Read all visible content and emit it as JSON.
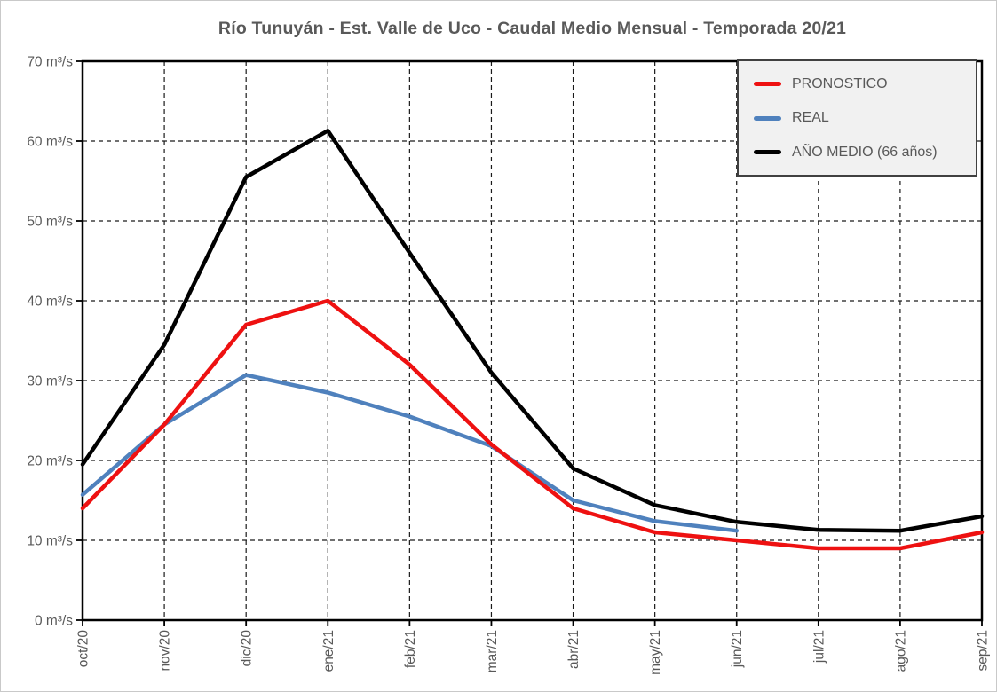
{
  "window": {
    "background": "#ffffff",
    "border_color": "#c9c9c9"
  },
  "chart_data": {
    "type": "line",
    "title": "Río Tunuyán - Est. Valle de Uco - Caudal Medio Mensual - Temporada 20/21",
    "title_color": "#595959",
    "xlabel": "",
    "ylabel": "",
    "unit": "m³/s",
    "categories": [
      "oct/20",
      "nov/20",
      "dic/20",
      "ene/21",
      "feb/21",
      "mar/21",
      "abr/21",
      "may/21",
      "jun/21",
      "jul/21",
      "ago/21",
      "sep/21"
    ],
    "ylim": [
      0,
      70
    ],
    "ytick_step": 10,
    "ytick_labels": [
      "0 m³/s",
      "10 m³/s",
      "20 m³/s",
      "30 m³/s",
      "40 m³/s",
      "50 m³/s",
      "60 m³/s",
      "70 m³/s"
    ],
    "grid": {
      "style": "dashed",
      "color": "#1a1a1a",
      "horizontal": true,
      "vertical": true
    },
    "axis_text_color": "#595959",
    "legend": {
      "position": "top-right-inside",
      "background": "#f1f1f1",
      "border_color": "#404040"
    },
    "series": [
      {
        "name": "PRONOSTICO",
        "color": "#ee1111",
        "values": [
          14,
          24.5,
          37,
          40,
          32,
          22,
          14,
          11,
          10,
          9,
          9,
          11
        ]
      },
      {
        "name": "REAL",
        "color": "#4f81bd",
        "values": [
          15.7,
          24.5,
          30.7,
          28.5,
          25.5,
          21.8,
          15,
          12.4,
          11.2,
          null,
          null,
          null
        ]
      },
      {
        "name": "AÑO MEDIO (66 años)",
        "color": "#000000",
        "values": [
          19.5,
          34.5,
          55.5,
          61.3,
          46,
          31,
          19,
          14.4,
          12.3,
          11.3,
          11.2,
          13
        ]
      }
    ]
  }
}
